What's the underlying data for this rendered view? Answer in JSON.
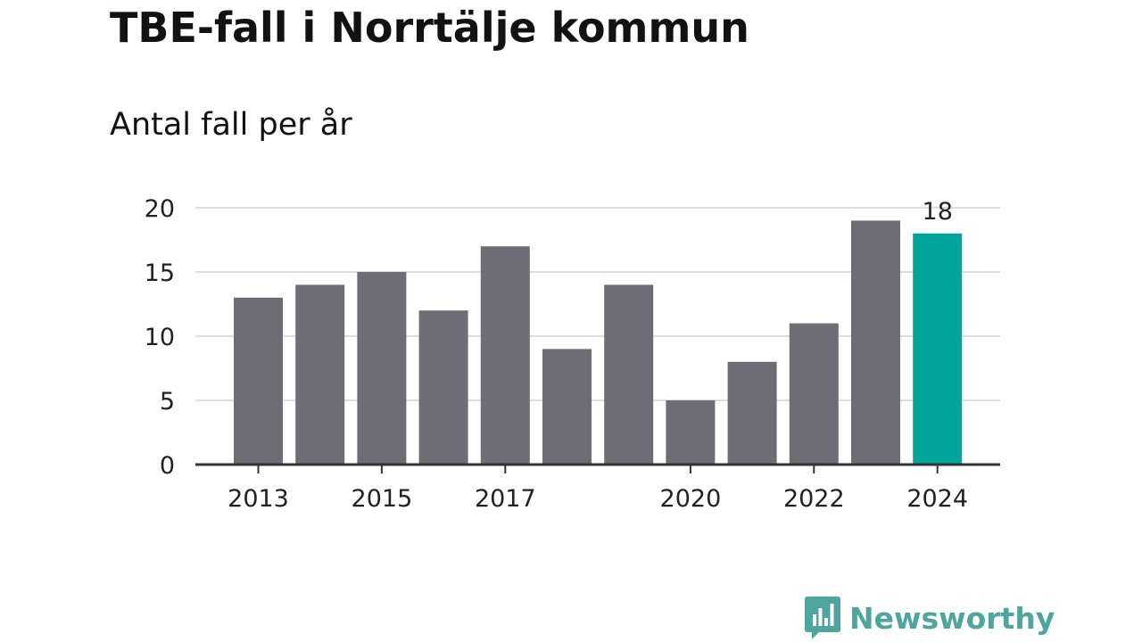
{
  "title": "TBE-fall i Norrtälje kommun",
  "subtitle": "Antal fall per år",
  "brand": {
    "name": "Newsworthy",
    "color": "#4da59d",
    "icon": "bar-chart-speech-bubble-icon"
  },
  "colors": {
    "bar": "#6e6d75",
    "highlight": "#00a49a",
    "grid": "#dcdcdc",
    "axis": "#333333",
    "text": "#222222"
  },
  "chart_data": {
    "type": "bar",
    "title": "TBE-fall i Norrtälje kommun",
    "subtitle": "Antal fall per år",
    "categories": [
      2013,
      2014,
      2015,
      2016,
      2017,
      2018,
      2019,
      2020,
      2021,
      2022,
      2023,
      2024
    ],
    "values": [
      13,
      14,
      15,
      12,
      17,
      9,
      14,
      5,
      8,
      11,
      19,
      18
    ],
    "xtick_labels": [
      "2013",
      "2015",
      "2017",
      "2020",
      "2022",
      "2024"
    ],
    "yticks": [
      0,
      5,
      10,
      15,
      20
    ],
    "ylim": [
      0,
      20
    ],
    "highlight_category": 2024,
    "highlight_label": "18",
    "grid": true,
    "legend": "none"
  }
}
